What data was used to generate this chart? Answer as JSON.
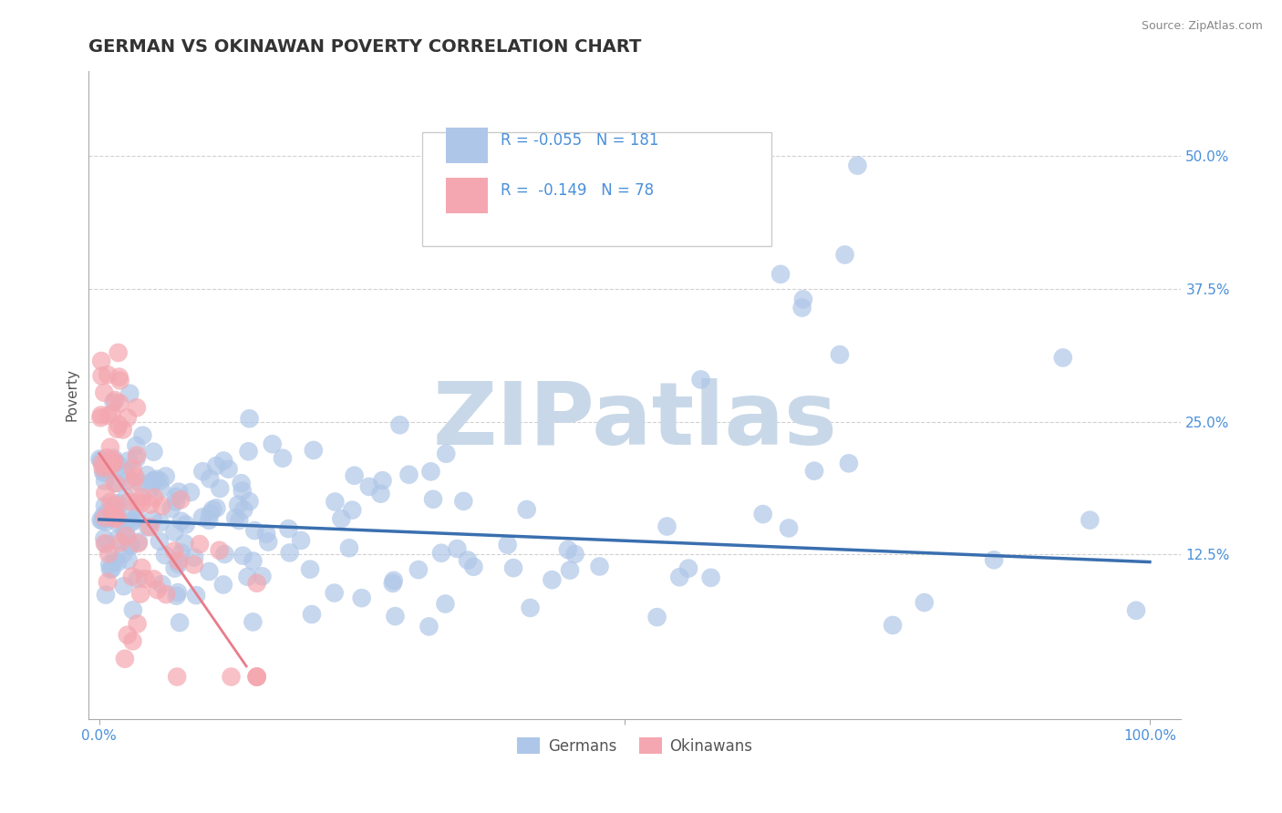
{
  "title": "GERMAN VS OKINAWAN POVERTY CORRELATION CHART",
  "source_text": "Source: ZipAtlas.com",
  "ylabel": "Poverty",
  "yticks": [
    0.125,
    0.25,
    0.375,
    0.5
  ],
  "yticklabels": [
    "12.5%",
    "25.0%",
    "37.5%",
    "50.0%"
  ],
  "german_R": -0.055,
  "german_N": 181,
  "okinawan_R": -0.149,
  "okinawan_N": 78,
  "german_color": "#aec6e8",
  "okinawan_color": "#f4a7b0",
  "german_line_color": "#3a6faf",
  "okinawan_line_color": "#e87c8a",
  "watermark_text": "ZIPatlas",
  "watermark_color": "#c8d8e8",
  "background_color": "#ffffff",
  "grid_color": "#cccccc",
  "title_color": "#333333",
  "title_fontsize": 14,
  "axis_label_color": "#555555",
  "tick_label_color": "#4a90d9",
  "legend_color": "#4a90d9"
}
